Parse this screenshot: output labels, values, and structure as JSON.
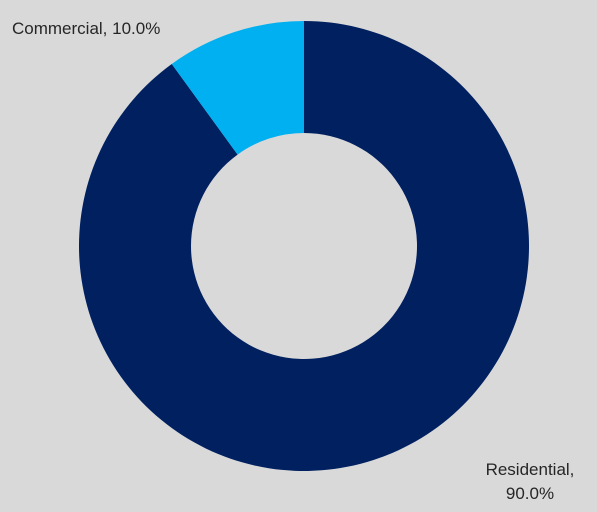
{
  "chart_data": {
    "type": "pie",
    "variant": "donut",
    "categories": [
      "Residential",
      "Commercial"
    ],
    "values": [
      90.0,
      10.0
    ],
    "unit": "%",
    "colors": [
      "#002060",
      "#00b0f0"
    ],
    "data_labels": [
      [
        "Residential,",
        "90.0%"
      ],
      [
        "Commercial, 10.0%"
      ]
    ],
    "background": "#d9d9d9",
    "legend": "none"
  }
}
